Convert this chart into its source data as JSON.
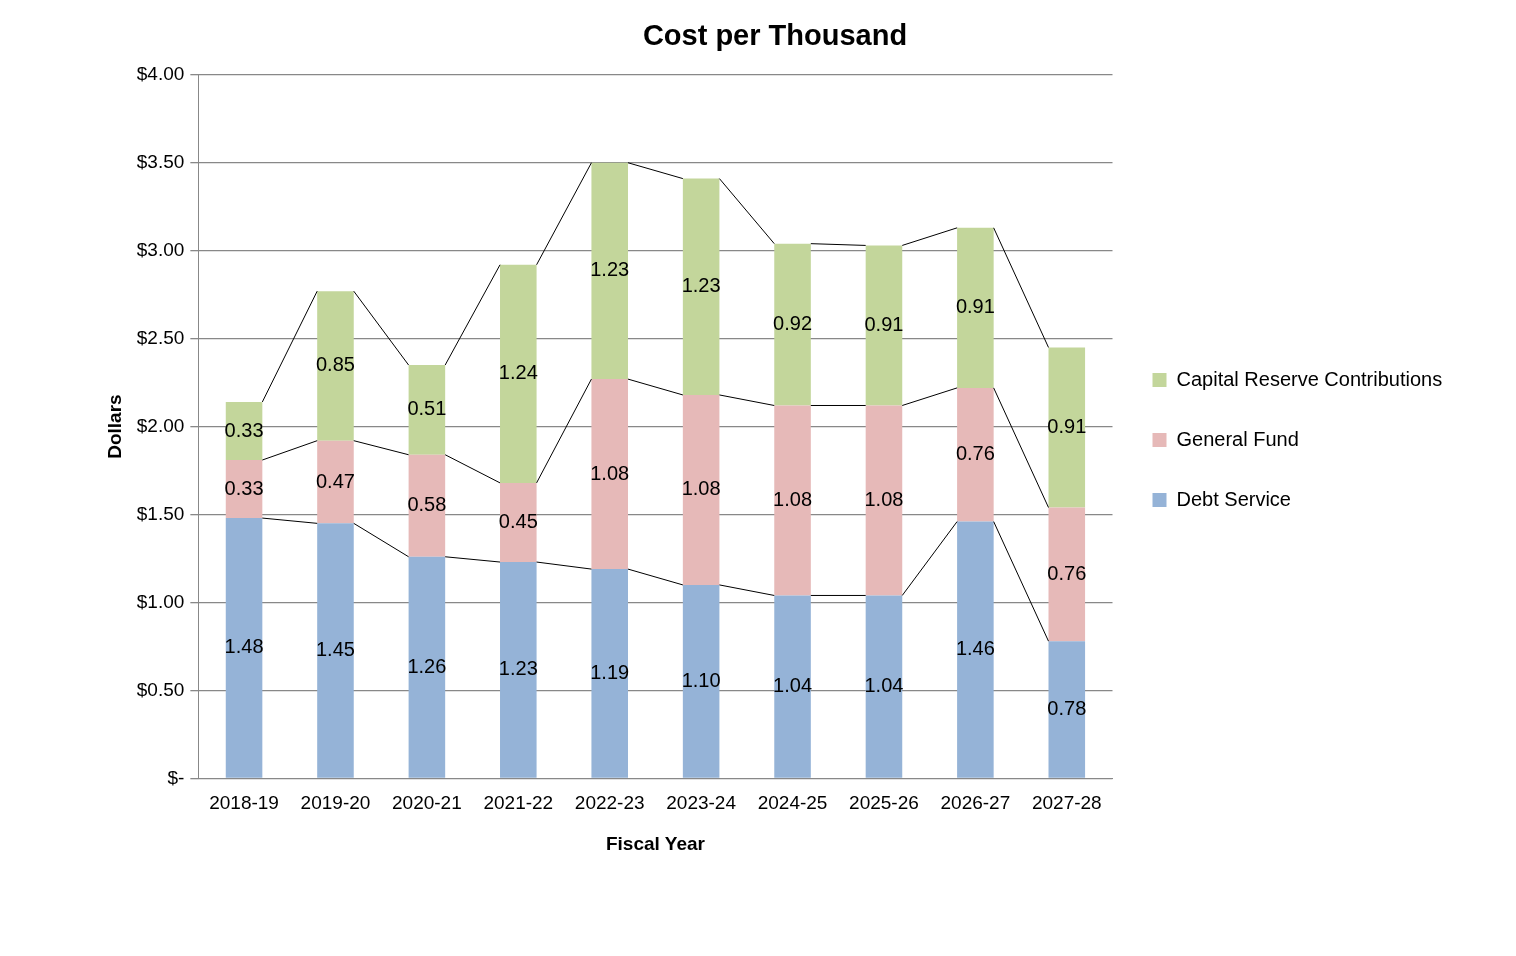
{
  "chart_data": {
    "type": "bar",
    "title": "Cost per Thousand",
    "xlabel": "Fiscal Year",
    "ylabel": "Dollars",
    "categories": [
      "2018-19",
      "2019-20",
      "2020-21",
      "2021-22",
      "2022-23",
      "2023-24",
      "2024-25",
      "2025-26",
      "2026-27",
      "2027-28"
    ],
    "stacked": true,
    "grid": "y",
    "legend": "right",
    "ylim": [
      0,
      4
    ],
    "yticks": [
      {
        "value": 0,
        "label": "$-"
      },
      {
        "value": 0.5,
        "label": "$0.50"
      },
      {
        "value": 1,
        "label": "$1.00"
      },
      {
        "value": 1.5,
        "label": "$1.50"
      },
      {
        "value": 2,
        "label": "$2.00"
      },
      {
        "value": 2.5,
        "label": "$2.50"
      },
      {
        "value": 3,
        "label": "$3.00"
      },
      {
        "value": 3.5,
        "label": "$3.50"
      },
      {
        "value": 4,
        "label": "$4.00"
      }
    ],
    "series": [
      {
        "name": "Debt Service",
        "color": "#95b3d7",
        "values": [
          1.48,
          1.45,
          1.26,
          1.23,
          1.19,
          1.1,
          1.04,
          1.04,
          1.46,
          0.78
        ],
        "value_labels": [
          "1.48",
          "1.45",
          "1.26",
          "1.23",
          "1.19",
          "1.10",
          "1.04",
          "1.04",
          "1.46",
          "0.78"
        ]
      },
      {
        "name": "General Fund",
        "color": "#e6b9b8",
        "values": [
          0.33,
          0.47,
          0.58,
          0.45,
          1.08,
          1.08,
          1.08,
          1.08,
          0.76,
          0.76
        ],
        "value_labels": [
          "0.33",
          "0.47",
          "0.58",
          "0.45",
          "1.08",
          "1.08",
          "1.08",
          "1.08",
          "0.76",
          "0.76"
        ]
      },
      {
        "name": "Capital Reserve Contributions",
        "color": "#c3d69b",
        "values": [
          0.33,
          0.85,
          0.51,
          1.24,
          1.23,
          1.23,
          0.92,
          0.91,
          0.91,
          0.91
        ],
        "value_labels": [
          "0.33",
          "0.85",
          "0.51",
          "1.24",
          "1.23",
          "1.23",
          "0.92",
          "0.91",
          "0.91",
          "0.91"
        ]
      }
    ]
  }
}
